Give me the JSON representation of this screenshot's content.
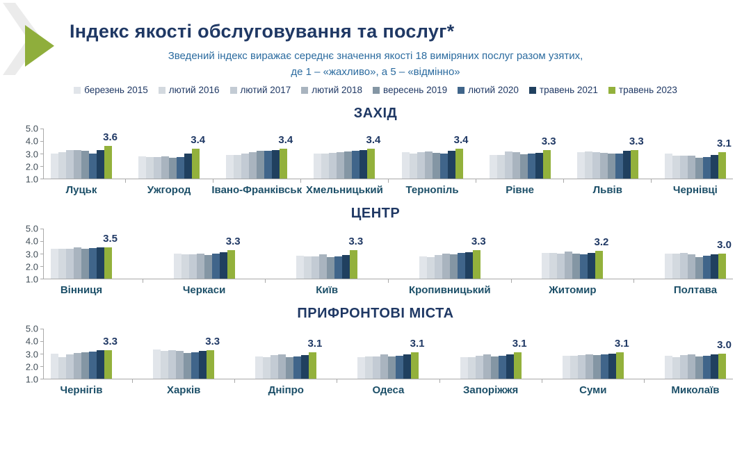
{
  "header": {
    "title": "Індекс якості обслуговування та послуг*",
    "subtitle_line1": "Зведений індекс виражає середнє значення якості 18 виміряних послуг разом узятих,",
    "subtitle_line2": "де 1 – «жахливо», а 5 – «відмінно»"
  },
  "legend": {
    "items": [
      {
        "label": "березень 2015",
        "color": "#e1e5ea"
      },
      {
        "label": "лютий 2016",
        "color": "#d3d9df"
      },
      {
        "label": "лютий 2017",
        "color": "#c3cbd4"
      },
      {
        "label": "лютий 2018",
        "color": "#a9b4bf"
      },
      {
        "label": "вересень 2019",
        "color": "#8496a4"
      },
      {
        "label": "лютий 2020",
        "color": "#40658a"
      },
      {
        "label": "травень 2021",
        "color": "#20405f"
      },
      {
        "label": "травень 2023",
        "color": "#93b13c"
      }
    ]
  },
  "colors": {
    "title_navy": "#1f3864",
    "subtitle_blue": "#2b6b9f",
    "city_label": "#1c4f68",
    "axis_text": "#3e4b55",
    "axis_line": "#a9a9a9",
    "accent_green": "#93b13c",
    "decor_gray": "#ebebeb"
  },
  "chart_data": {
    "type": "bar",
    "title": "Індекс якості обслуговування та послуг*",
    "ylim": [
      1.0,
      5.0
    ],
    "yticks": [
      "5.0",
      "4.0",
      "3.0",
      "2.0",
      "1.0"
    ],
    "grid": false,
    "legend_position": "top",
    "series": [
      "березень 2015",
      "лютий 2016",
      "лютий 2017",
      "лютий 2018",
      "вересень 2019",
      "лютий 2020",
      "травень 2021",
      "травень 2023"
    ],
    "series_colors": [
      "#e1e5ea",
      "#d3d9df",
      "#c3cbd4",
      "#a9b4bf",
      "#8496a4",
      "#40658a",
      "#20405f",
      "#93b13c"
    ],
    "sections": [
      {
        "title": "ЗАХІД",
        "cities": [
          {
            "name": "Луцьк",
            "values": [
              3.0,
              3.1,
              3.3,
              3.3,
              3.2,
              3.0,
              3.3,
              3.6
            ],
            "label": "3.6"
          },
          {
            "name": "Ужгород",
            "values": [
              2.8,
              2.75,
              2.7,
              2.8,
              2.65,
              2.7,
              3.0,
              3.4
            ],
            "label": "3.4"
          },
          {
            "name": "Івано-Франківськ",
            "values": [
              2.9,
              2.9,
              3.0,
              3.1,
              3.2,
              3.25,
              3.3,
              3.4
            ],
            "label": "3.4"
          },
          {
            "name": "Хмельницький",
            "values": [
              3.0,
              3.0,
              3.05,
              3.1,
              3.15,
              3.25,
              3.3,
              3.4
            ],
            "label": "3.4"
          },
          {
            "name": "Тернопіль",
            "values": [
              3.1,
              3.0,
              3.1,
              3.15,
              3.05,
              3.0,
              3.2,
              3.4
            ],
            "label": "3.4"
          },
          {
            "name": "Рівне",
            "values": [
              2.9,
              2.9,
              3.15,
              3.1,
              2.95,
              3.0,
              3.05,
              3.3
            ],
            "label": "3.3"
          },
          {
            "name": "Львів",
            "values": [
              3.1,
              3.15,
              3.1,
              3.05,
              3.0,
              3.0,
              3.2,
              3.3
            ],
            "label": "3.3"
          },
          {
            "name": "Чернівці",
            "values": [
              3.0,
              2.85,
              2.85,
              2.85,
              2.65,
              2.7,
              2.9,
              3.1
            ],
            "label": "3.1"
          }
        ]
      },
      {
        "title": "ЦЕНТР",
        "cities": [
          {
            "name": "Вінниця",
            "values": [
              3.4,
              3.4,
              3.4,
              3.5,
              3.4,
              3.45,
              3.5,
              3.5
            ],
            "label": "3.5"
          },
          {
            "name": "Черкаси",
            "values": [
              3.0,
              2.95,
              2.95,
              3.0,
              2.9,
              3.0,
              3.1,
              3.3
            ],
            "label": "3.3"
          },
          {
            "name": "Київ",
            "values": [
              2.85,
              2.8,
              2.8,
              2.95,
              2.7,
              2.8,
              2.9,
              3.3
            ],
            "label": "3.3"
          },
          {
            "name": "Кропивницький",
            "values": [
              2.8,
              2.75,
              2.9,
              3.0,
              2.95,
              3.05,
              3.1,
              3.3
            ],
            "label": "3.3"
          },
          {
            "name": "Житомир",
            "values": [
              3.05,
              3.05,
              3.0,
              3.15,
              3.0,
              2.95,
              3.05,
              3.2
            ],
            "label": "3.2"
          },
          {
            "name": "Полтава",
            "values": [
              3.0,
              3.0,
              3.05,
              2.95,
              2.75,
              2.85,
              2.95,
              3.0
            ],
            "label": "3.0"
          }
        ]
      },
      {
        "title": "ПРИФРОНТОВІ МІСТА",
        "cities": [
          {
            "name": "Чернігів",
            "values": [
              3.0,
              2.7,
              2.95,
              3.05,
              3.1,
              3.15,
              3.3,
              3.3
            ],
            "label": "3.3"
          },
          {
            "name": "Харків",
            "values": [
              3.35,
              3.2,
              3.3,
              3.25,
              3.05,
              3.1,
              3.2,
              3.3
            ],
            "label": "3.3"
          },
          {
            "name": "Дніпро",
            "values": [
              2.8,
              2.75,
              2.9,
              2.95,
              2.7,
              2.8,
              2.9,
              3.1
            ],
            "label": "3.1"
          },
          {
            "name": "Одеса",
            "values": [
              2.75,
              2.8,
              2.8,
              2.95,
              2.8,
              2.85,
              2.95,
              3.1
            ],
            "label": "3.1"
          },
          {
            "name": "Запоріжжя",
            "values": [
              2.75,
              2.75,
              2.85,
              2.95,
              2.8,
              2.85,
              2.95,
              3.1
            ],
            "label": "3.1"
          },
          {
            "name": "Суми",
            "values": [
              2.85,
              2.85,
              2.9,
              2.95,
              2.9,
              2.95,
              3.0,
              3.1
            ],
            "label": "3.1"
          },
          {
            "name": "Миколаїв",
            "values": [
              2.85,
              2.7,
              2.9,
              2.95,
              2.8,
              2.85,
              2.95,
              3.0
            ],
            "label": "3.0"
          }
        ]
      }
    ]
  }
}
